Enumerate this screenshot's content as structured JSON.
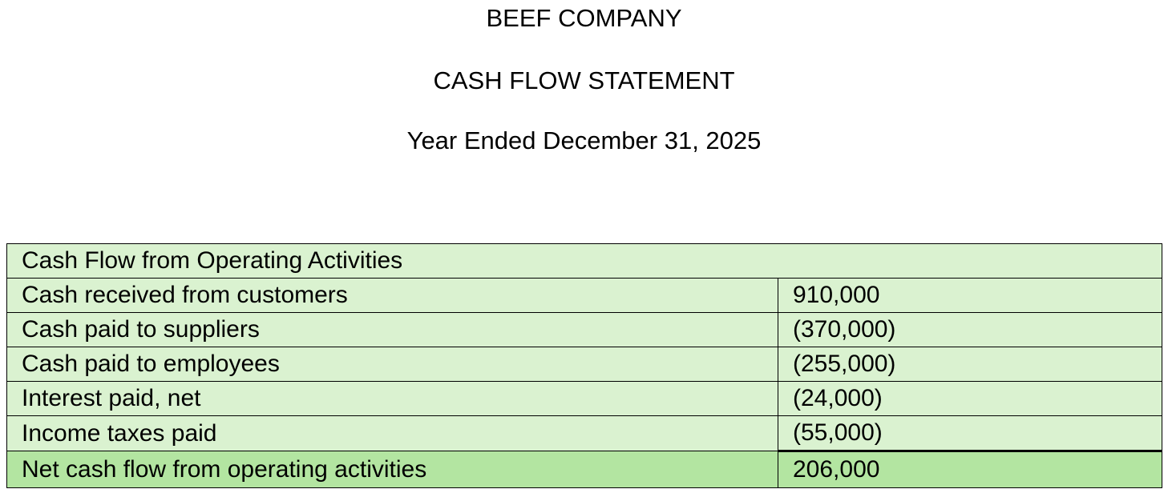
{
  "header": {
    "company": "BEEF COMPANY",
    "statement": "CASH FLOW STATEMENT",
    "period": "Year Ended December 31, 2025"
  },
  "table": {
    "section_title": "Cash Flow from Operating Activities",
    "rows": [
      {
        "label": "Cash received from customers",
        "amount": "910,000"
      },
      {
        "label": "Cash paid to suppliers",
        "amount": "(370,000)"
      },
      {
        "label": "Cash paid to employees",
        "amount": "(255,000)"
      },
      {
        "label": "Interest paid, net",
        "amount": "(24,000)"
      },
      {
        "label": "Income taxes paid",
        "amount": "(55,000)"
      }
    ],
    "total": {
      "label": "Net cash flow from operating activities",
      "amount": "206,000"
    }
  },
  "colors": {
    "row_fill": "#daf2d0",
    "total_fill": "#b3e5a1"
  }
}
